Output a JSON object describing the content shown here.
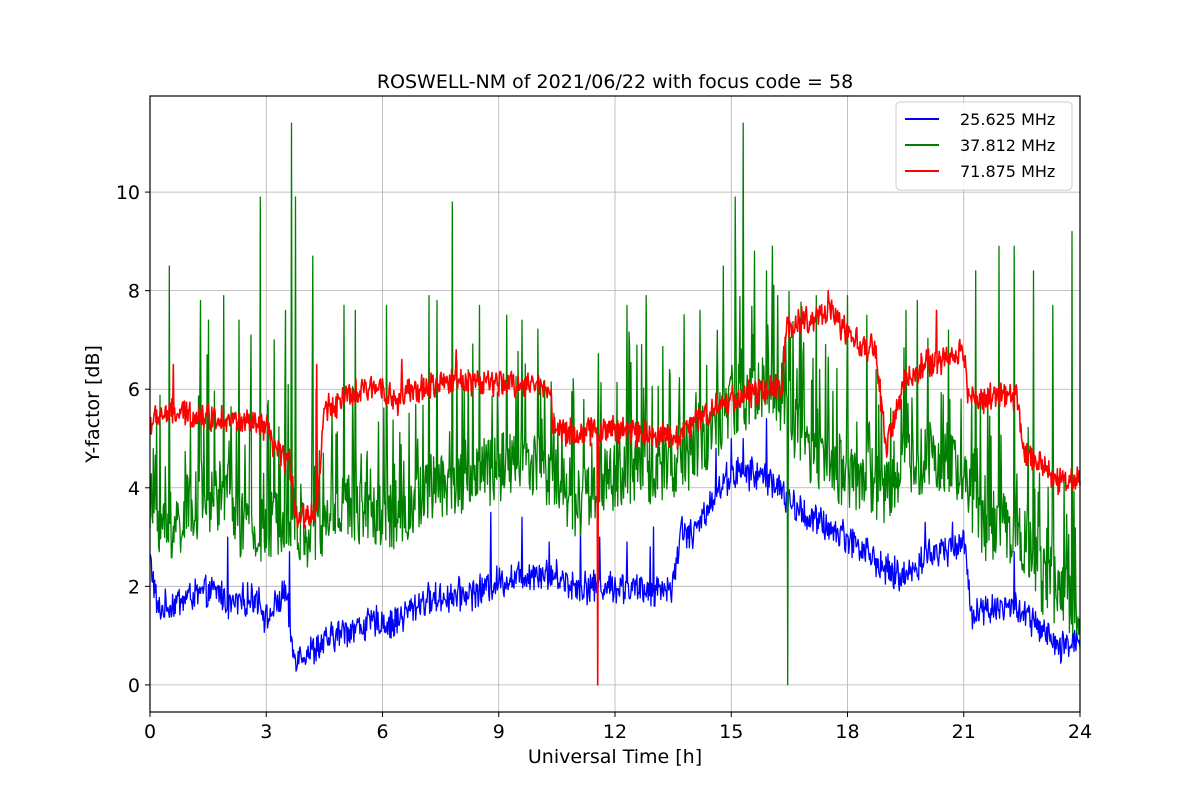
{
  "chart_data": {
    "type": "line",
    "title": "ROSWELL-NM of 2021/06/22 with focus code = 58",
    "xlabel": "Universal Time [h]",
    "ylabel": "Y-factor [dB]",
    "xlim": [
      0,
      24
    ],
    "ylim": [
      -0.55,
      11.95
    ],
    "xticks": [
      0,
      3,
      6,
      9,
      12,
      15,
      18,
      21,
      24
    ],
    "yticks": [
      0,
      2,
      4,
      6,
      8,
      10
    ],
    "grid": true,
    "legend_position": "top-right",
    "series": [
      {
        "name": "25.625 MHz",
        "color": "#0000ff",
        "noise": 0.35,
        "points": [
          [
            0,
            2.6
          ],
          [
            0.2,
            1.5
          ],
          [
            1,
            1.8
          ],
          [
            1.8,
            1.9
          ],
          [
            2,
            1.6
          ],
          [
            2.8,
            1.8
          ],
          [
            3,
            1.3
          ],
          [
            3.5,
            1.9
          ],
          [
            3.7,
            0.6
          ],
          [
            4.2,
            0.7
          ],
          [
            5,
            1.1
          ],
          [
            6,
            1.3
          ],
          [
            6.2,
            1.2
          ],
          [
            7,
            1.7
          ],
          [
            8.5,
            1.9
          ],
          [
            9,
            2.1
          ],
          [
            10,
            2.3
          ],
          [
            10.5,
            2.2
          ],
          [
            11,
            2.0
          ],
          [
            12,
            2.0
          ],
          [
            12.8,
            1.9
          ],
          [
            13.5,
            2.0
          ],
          [
            13.7,
            3.2
          ],
          [
            14,
            3.0
          ],
          [
            14.5,
            3.8
          ],
          [
            15,
            4.3
          ],
          [
            15.5,
            4.3
          ],
          [
            16,
            4.2
          ],
          [
            16.5,
            3.7
          ],
          [
            17,
            3.4
          ],
          [
            18,
            3.0
          ],
          [
            18.5,
            2.7
          ],
          [
            19,
            2.3
          ],
          [
            19.5,
            2.2
          ],
          [
            20,
            2.6
          ],
          [
            21,
            2.9
          ],
          [
            21.2,
            1.5
          ],
          [
            22,
            1.6
          ],
          [
            22.5,
            1.5
          ],
          [
            23,
            1.1
          ],
          [
            23.5,
            0.7
          ],
          [
            24,
            1.0
          ]
        ],
        "spikes": [
          [
            2.0,
            3.0
          ],
          [
            3.6,
            2.7
          ],
          [
            8.8,
            3.5
          ],
          [
            9.6,
            3.4
          ],
          [
            10.3,
            2.9
          ],
          [
            11.1,
            3.2
          ],
          [
            11.6,
            3.0
          ],
          [
            12.3,
            2.9
          ],
          [
            12.9,
            2.8
          ],
          [
            13.0,
            3.2
          ],
          [
            14.2,
            3.4
          ],
          [
            14.6,
            4.8
          ],
          [
            15.0,
            5.0
          ],
          [
            15.3,
            5.0
          ],
          [
            15.9,
            5.4
          ],
          [
            20.0,
            3.3
          ],
          [
            20.7,
            3.3
          ],
          [
            22.3,
            2.7
          ]
        ]
      },
      {
        "name": "37.812 MHz",
        "color": "#008000",
        "noise": 1.1,
        "points": [
          [
            0,
            3.7
          ],
          [
            0.5,
            3.0
          ],
          [
            1,
            3.6
          ],
          [
            2,
            3.9
          ],
          [
            2.5,
            3.0
          ],
          [
            3,
            3.1
          ],
          [
            3.5,
            3.5
          ],
          [
            4,
            3.0
          ],
          [
            4.5,
            3.2
          ],
          [
            5,
            3.6
          ],
          [
            6,
            3.5
          ],
          [
            6.5,
            3.4
          ],
          [
            7,
            3.9
          ],
          [
            8,
            4.1
          ],
          [
            9,
            4.4
          ],
          [
            10,
            4.5
          ],
          [
            10.5,
            4.1
          ],
          [
            11,
            3.7
          ],
          [
            11.5,
            3.9
          ],
          [
            12,
            4.2
          ],
          [
            13,
            4.4
          ],
          [
            13.5,
            4.5
          ],
          [
            14,
            4.7
          ],
          [
            14.5,
            5.2
          ],
          [
            15,
            5.6
          ],
          [
            16,
            6.0
          ],
          [
            16.4,
            5.6
          ],
          [
            17,
            4.7
          ],
          [
            18,
            4.3
          ],
          [
            19,
            3.9
          ],
          [
            19.5,
            4.5
          ],
          [
            20,
            4.6
          ],
          [
            20.5,
            4.5
          ],
          [
            21,
            4.3
          ],
          [
            21.5,
            3.2
          ],
          [
            22,
            3.3
          ],
          [
            22.5,
            3.0
          ],
          [
            23,
            2.1
          ],
          [
            23.5,
            1.8
          ],
          [
            24,
            1.7
          ]
        ],
        "spikes": [
          [
            0.5,
            8.5
          ],
          [
            1.3,
            7.8
          ],
          [
            1.5,
            7.4
          ],
          [
            1.9,
            7.9
          ],
          [
            2.3,
            7.4
          ],
          [
            2.6,
            7.1
          ],
          [
            2.85,
            9.9
          ],
          [
            3.2,
            7.0
          ],
          [
            3.5,
            7.6
          ],
          [
            3.65,
            11.4
          ],
          [
            3.75,
            9.9
          ],
          [
            4.2,
            8.7
          ],
          [
            5.0,
            7.7
          ],
          [
            5.3,
            7.6
          ],
          [
            6.1,
            7.7
          ],
          [
            7.2,
            7.9
          ],
          [
            7.4,
            7.8
          ],
          [
            7.8,
            9.8
          ],
          [
            8.5,
            7.7
          ],
          [
            9.2,
            7.5
          ],
          [
            9.6,
            7.4
          ],
          [
            12.3,
            7.7
          ],
          [
            12.8,
            7.9
          ],
          [
            13.4,
            6.4
          ],
          [
            14.2,
            7.6
          ],
          [
            14.8,
            8.5
          ],
          [
            15.1,
            9.9
          ],
          [
            15.3,
            11.4
          ],
          [
            15.6,
            8.8
          ],
          [
            15.9,
            8.4
          ],
          [
            16.2,
            7.9
          ],
          [
            17.2,
            7.9
          ],
          [
            18.0,
            7.9
          ],
          [
            18.5,
            7.5
          ],
          [
            19.5,
            7.6
          ],
          [
            19.8,
            7.8
          ],
          [
            20.6,
            7.2
          ],
          [
            21.3,
            8.4
          ],
          [
            21.9,
            8.9
          ],
          [
            22.3,
            8.9
          ],
          [
            22.8,
            8.4
          ],
          [
            23.3,
            7.7
          ],
          [
            23.8,
            9.2
          ]
        ],
        "dips": [
          [
            16.45,
            0.0
          ]
        ]
      },
      {
        "name": "71.875 MHz",
        "color": "#ff0000",
        "noise": 0.3,
        "points": [
          [
            0,
            5.3
          ],
          [
            0.3,
            5.5
          ],
          [
            1,
            5.5
          ],
          [
            2,
            5.4
          ],
          [
            3,
            5.2
          ],
          [
            3.2,
            4.8
          ],
          [
            3.6,
            4.5
          ],
          [
            3.8,
            3.4
          ],
          [
            4.3,
            3.5
          ],
          [
            4.5,
            5.6
          ],
          [
            5,
            5.8
          ],
          [
            6,
            6.1
          ],
          [
            6.3,
            5.7
          ],
          [
            6.6,
            5.9
          ],
          [
            7,
            6.0
          ],
          [
            8,
            6.2
          ],
          [
            9,
            6.1
          ],
          [
            10,
            6.1
          ],
          [
            10.35,
            6.0
          ],
          [
            10.4,
            5.2
          ],
          [
            11,
            5.1
          ],
          [
            12,
            5.2
          ],
          [
            13,
            5.1
          ],
          [
            13.5,
            5.0
          ],
          [
            14,
            5.3
          ],
          [
            14.5,
            5.6
          ],
          [
            15,
            5.8
          ],
          [
            16,
            6.0
          ],
          [
            16.3,
            6.0
          ],
          [
            16.45,
            7.3
          ],
          [
            17,
            7.4
          ],
          [
            17.5,
            7.6
          ],
          [
            18,
            7.1
          ],
          [
            18.5,
            6.8
          ],
          [
            18.7,
            6.9
          ],
          [
            19,
            4.8
          ],
          [
            19.5,
            6.2
          ],
          [
            20,
            6.5
          ],
          [
            20.5,
            6.6
          ],
          [
            21,
            6.8
          ],
          [
            21.1,
            5.9
          ],
          [
            21.5,
            5.8
          ],
          [
            22,
            5.9
          ],
          [
            22.4,
            5.8
          ],
          [
            22.5,
            4.8
          ],
          [
            23,
            4.5
          ],
          [
            23.5,
            4.1
          ],
          [
            24,
            4.2
          ]
        ],
        "spikes": [
          [
            0.6,
            6.5
          ],
          [
            4.3,
            6.5
          ],
          [
            6.5,
            6.6
          ],
          [
            7.9,
            6.8
          ],
          [
            17.5,
            8.0
          ],
          [
            20.3,
            7.6
          ]
        ],
        "dips": [
          [
            11.55,
            0.0
          ]
        ]
      }
    ]
  }
}
